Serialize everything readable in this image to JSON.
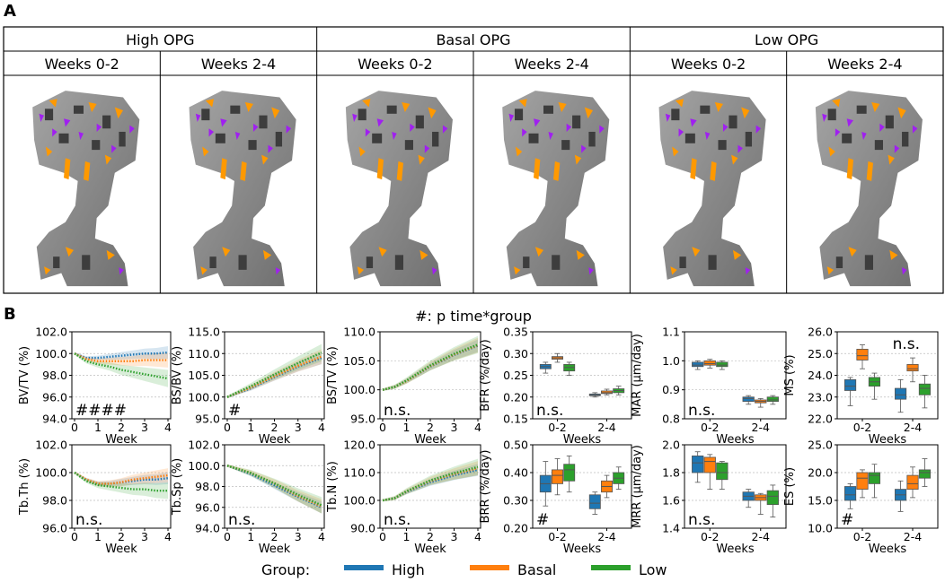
{
  "panel_a": {
    "label": "A",
    "groups": [
      "High OPG",
      "Basal OPG",
      "Low OPG"
    ],
    "periods": [
      "Weeks 0-2",
      "Weeks 2-4"
    ]
  },
  "panel_b": {
    "label": "B",
    "subtitle": "#: p time*group"
  },
  "legend": {
    "title": "Group:",
    "entries": [
      {
        "name": "High",
        "color": "#1f77b4"
      },
      {
        "name": "Basal",
        "color": "#ff7f0e"
      },
      {
        "name": "Low",
        "color": "#2ca02c"
      }
    ]
  },
  "colors": {
    "high": "#1f77b4",
    "basal": "#ff7f0e",
    "low": "#2ca02c",
    "bone": "#8c8c8c",
    "formation": "#ff9900",
    "resorption": "#a020f0"
  },
  "chart_data": [
    {
      "type": "line",
      "id": "bvtv",
      "ylabel": "BV/TV (%)",
      "xlabel": "Week",
      "ylim": [
        94,
        102
      ],
      "yticks": [
        "94.0",
        "96.0",
        "98.0",
        "100.0",
        "102.0"
      ],
      "xticks": [
        "0",
        "1",
        "2",
        "3",
        "4"
      ],
      "annotation": "####",
      "series": [
        {
          "name": "High",
          "x": [
            0,
            0.5,
            1,
            1.5,
            2,
            2.5,
            3,
            3.5,
            4
          ],
          "y": [
            100,
            99.6,
            99.6,
            99.7,
            99.8,
            99.9,
            100,
            100,
            100.1
          ]
        },
        {
          "name": "Basal",
          "x": [
            0,
            0.5,
            1,
            1.5,
            2,
            2.5,
            3,
            3.5,
            4
          ],
          "y": [
            100,
            99.5,
            99.3,
            99.3,
            99.3,
            99.3,
            99.4,
            99.4,
            99.4
          ]
        },
        {
          "name": "Low",
          "x": [
            0,
            0.5,
            1,
            1.5,
            2,
            2.5,
            3,
            3.5,
            4
          ],
          "y": [
            100,
            99.3,
            99.0,
            98.8,
            98.5,
            98.3,
            98.1,
            97.9,
            97.7
          ]
        }
      ]
    },
    {
      "type": "line",
      "id": "bsbv",
      "ylabel": "BS/BV (%)",
      "xlabel": "Week",
      "ylim": [
        95,
        115
      ],
      "yticks": [
        "95.0",
        "100.0",
        "105.0",
        "110.0",
        "115.0"
      ],
      "xticks": [
        "0",
        "1",
        "2",
        "3",
        "4"
      ],
      "annotation": "#",
      "series": [
        {
          "name": "High",
          "x": [
            0,
            1,
            2,
            3,
            4
          ],
          "y": [
            100,
            102,
            104.6,
            107,
            109
          ]
        },
        {
          "name": "Basal",
          "x": [
            0,
            1,
            2,
            3,
            4
          ],
          "y": [
            100,
            102.2,
            104.8,
            107.2,
            109.3
          ]
        },
        {
          "name": "Low",
          "x": [
            0,
            1,
            2,
            3,
            4
          ],
          "y": [
            100,
            102.5,
            105.2,
            107.8,
            110.2
          ]
        }
      ]
    },
    {
      "type": "line",
      "id": "bstv",
      "ylabel": "BS/TV (%)",
      "xlabel": "Week",
      "ylim": [
        95,
        110
      ],
      "yticks": [
        "95.0",
        "100.0",
        "105.0",
        "110.0"
      ],
      "xticks": [
        "0",
        "1",
        "2",
        "3",
        "4"
      ],
      "annotation": "n.s.",
      "series": [
        {
          "name": "High",
          "x": [
            0,
            0.5,
            1,
            2,
            3,
            4
          ],
          "y": [
            100,
            100.5,
            101.5,
            104,
            106,
            107.6
          ]
        },
        {
          "name": "Basal",
          "x": [
            0,
            0.5,
            1,
            2,
            3,
            4
          ],
          "y": [
            100,
            100.5,
            101.5,
            104.1,
            106.1,
            107.7
          ]
        },
        {
          "name": "Low",
          "x": [
            0,
            0.5,
            1,
            2,
            3,
            4
          ],
          "y": [
            100,
            100.5,
            101.6,
            104.2,
            106.2,
            107.8
          ]
        }
      ]
    },
    {
      "type": "box",
      "id": "bfr",
      "ylabel": "BFR (%/day)",
      "xlabel": "Weeks",
      "ylim": [
        0.15,
        0.35
      ],
      "yticks": [
        "0.15",
        "0.20",
        "0.25",
        "0.30",
        "0.35"
      ],
      "categories": [
        "0-2",
        "2-4"
      ],
      "annotation": "n.s.",
      "series": [
        {
          "name": "High",
          "boxes": [
            [
              0.255,
              0.265,
              0.27,
              0.275,
              0.28
            ],
            [
              0.2,
              0.203,
              0.205,
              0.207,
              0.21
            ]
          ]
        },
        {
          "name": "Basal",
          "boxes": [
            [
              0.28,
              0.287,
              0.29,
              0.293,
              0.3
            ],
            [
              0.205,
              0.208,
              0.21,
              0.214,
              0.218
            ]
          ]
        },
        {
          "name": "Low",
          "boxes": [
            [
              0.25,
              0.26,
              0.268,
              0.275,
              0.28
            ],
            [
              0.205,
              0.21,
              0.215,
              0.219,
              0.225
            ]
          ]
        }
      ]
    },
    {
      "type": "box",
      "id": "mar",
      "ylabel": "MAR (μm/day)",
      "xlabel": "Weeks",
      "ylim": [
        0.8,
        1.1
      ],
      "yticks": [
        "0.8",
        "0.9",
        "1.0",
        "1.1"
      ],
      "categories": [
        "0-2",
        "2-4"
      ],
      "annotation": "n.s.",
      "series": [
        {
          "name": "High",
          "boxes": [
            [
              0.97,
              0.98,
              0.985,
              0.995,
              1.0
            ],
            [
              0.85,
              0.86,
              0.87,
              0.875,
              0.88
            ]
          ]
        },
        {
          "name": "Basal",
          "boxes": [
            [
              0.975,
              0.985,
              0.99,
              1.0,
              1.005
            ],
            [
              0.84,
              0.855,
              0.86,
              0.865,
              0.87
            ]
          ]
        },
        {
          "name": "Low",
          "boxes": [
            [
              0.97,
              0.98,
              0.985,
              0.995,
              1.0
            ],
            [
              0.85,
              0.86,
              0.865,
              0.875,
              0.88
            ]
          ]
        }
      ]
    },
    {
      "type": "box",
      "id": "ms",
      "ylabel": "MS (%)",
      "xlabel": "Weeks",
      "ylim": [
        22,
        26
      ],
      "yticks": [
        "22.0",
        "23.0",
        "24.0",
        "25.0",
        "26.0"
      ],
      "categories": [
        "0-2",
        "2-4"
      ],
      "annotation": "n.s.",
      "series": [
        {
          "name": "High",
          "boxes": [
            [
              22.6,
              23.3,
              23.5,
              23.8,
              23.9
            ],
            [
              22.3,
              22.9,
              23.1,
              23.4,
              23.8
            ]
          ]
        },
        {
          "name": "Basal",
          "boxes": [
            [
              24.3,
              24.7,
              24.9,
              25.2,
              25.4
            ],
            [
              23.7,
              24.2,
              24.3,
              24.5,
              24.8
            ]
          ]
        },
        {
          "name": "Low",
          "boxes": [
            [
              22.9,
              23.5,
              23.7,
              23.9,
              24.1
            ],
            [
              22.5,
              23.1,
              23.4,
              23.6,
              24.0
            ]
          ]
        }
      ]
    },
    {
      "type": "line",
      "id": "tbth",
      "ylabel": "Tb.Th (%)",
      "xlabel": "Week",
      "ylim": [
        96,
        102
      ],
      "yticks": [
        "96.0",
        "98.0",
        "100.0",
        "102.0"
      ],
      "xticks": [
        "0",
        "1",
        "2",
        "3",
        "4"
      ],
      "annotation": "n.s.",
      "series": [
        {
          "name": "High",
          "x": [
            0,
            0.5,
            1,
            1.5,
            2,
            2.5,
            3,
            3.5,
            4
          ],
          "y": [
            100,
            99.5,
            99.2,
            99.2,
            99.3,
            99.4,
            99.5,
            99.5,
            99.6
          ]
        },
        {
          "name": "Basal",
          "x": [
            0,
            0.5,
            1,
            1.5,
            2,
            2.5,
            3,
            3.5,
            4
          ],
          "y": [
            100,
            99.5,
            99.2,
            99.2,
            99.3,
            99.5,
            99.6,
            99.7,
            99.8
          ]
        },
        {
          "name": "Low",
          "x": [
            0,
            0.5,
            1,
            1.5,
            2,
            2.5,
            3,
            3.5,
            4
          ],
          "y": [
            100,
            99.4,
            99.1,
            99.0,
            98.9,
            98.8,
            98.8,
            98.7,
            98.7
          ]
        }
      ]
    },
    {
      "type": "line",
      "id": "tbsp",
      "ylabel": "Tb.Sp (%)",
      "xlabel": "Week",
      "ylim": [
        94,
        102
      ],
      "yticks": [
        "94.0",
        "96.0",
        "98.0",
        "100.0",
        "102.0"
      ],
      "xticks": [
        "0",
        "1",
        "2",
        "3",
        "4"
      ],
      "annotation": "n.s.",
      "series": [
        {
          "name": "High",
          "x": [
            0,
            1,
            2,
            3,
            4
          ],
          "y": [
            100,
            99.2,
            98.1,
            97.0,
            96.0
          ]
        },
        {
          "name": "Basal",
          "x": [
            0,
            1,
            2,
            3,
            4
          ],
          "y": [
            100,
            99.3,
            98.3,
            97.1,
            96.1
          ]
        },
        {
          "name": "Low",
          "x": [
            0,
            1,
            2,
            3,
            4
          ],
          "y": [
            100,
            99.3,
            98.3,
            97.2,
            96.2
          ]
        }
      ]
    },
    {
      "type": "line",
      "id": "tbn",
      "ylabel": "Tb.N (%)",
      "xlabel": "Week",
      "ylim": [
        90,
        120
      ],
      "yticks": [
        "90.0",
        "100.0",
        "110.0",
        "120.0"
      ],
      "xticks": [
        "0",
        "1",
        "2",
        "3",
        "4"
      ],
      "annotation": "n.s.",
      "series": [
        {
          "name": "High",
          "x": [
            0,
            0.5,
            1,
            2,
            3,
            4
          ],
          "y": [
            100,
            100.8,
            103,
            106.5,
            109,
            111
          ]
        },
        {
          "name": "Basal",
          "x": [
            0,
            0.5,
            1,
            2,
            3,
            4
          ],
          "y": [
            100,
            100.8,
            103.2,
            107,
            109.5,
            111.6
          ]
        },
        {
          "name": "Low",
          "x": [
            0,
            0.5,
            1,
            2,
            3,
            4
          ],
          "y": [
            100,
            100.8,
            103.3,
            107.2,
            109.8,
            112
          ]
        }
      ]
    },
    {
      "type": "box",
      "id": "brr",
      "ylabel": "BRR (%/day)",
      "xlabel": "Weeks",
      "ylim": [
        0.2,
        0.5
      ],
      "yticks": [
        "0.20",
        "0.30",
        "0.40",
        "0.50"
      ],
      "categories": [
        "0-2",
        "2-4"
      ],
      "annotation": "#",
      "series": [
        {
          "name": "High",
          "boxes": [
            [
              0.28,
              0.33,
              0.36,
              0.39,
              0.44
            ],
            [
              0.25,
              0.27,
              0.29,
              0.32,
              0.33
            ]
          ]
        },
        {
          "name": "Basal",
          "boxes": [
            [
              0.32,
              0.36,
              0.39,
              0.41,
              0.45
            ],
            [
              0.31,
              0.33,
              0.35,
              0.37,
              0.39
            ]
          ]
        },
        {
          "name": "Low",
          "boxes": [
            [
              0.33,
              0.37,
              0.41,
              0.43,
              0.46
            ],
            [
              0.34,
              0.36,
              0.38,
              0.4,
              0.42
            ]
          ]
        }
      ]
    },
    {
      "type": "box",
      "id": "mrr",
      "ylabel": "MRR (μm/day)",
      "xlabel": "Weeks",
      "ylim": [
        1.4,
        2.0
      ],
      "yticks": [
        "1.4",
        "1.6",
        "1.8",
        "2.0"
      ],
      "categories": [
        "0-2",
        "2-4"
      ],
      "annotation": "n.s.",
      "series": [
        {
          "name": "High",
          "boxes": [
            [
              1.73,
              1.8,
              1.87,
              1.92,
              1.95
            ],
            [
              1.55,
              1.6,
              1.63,
              1.66,
              1.68
            ]
          ]
        },
        {
          "name": "Basal",
          "boxes": [
            [
              1.68,
              1.8,
              1.88,
              1.91,
              1.93
            ],
            [
              1.5,
              1.6,
              1.62,
              1.64,
              1.65
            ]
          ]
        },
        {
          "name": "Low",
          "boxes": [
            [
              1.68,
              1.75,
              1.8,
              1.87,
              1.88
            ],
            [
              1.48,
              1.57,
              1.63,
              1.67,
              1.71
            ]
          ]
        }
      ]
    },
    {
      "type": "box",
      "id": "es",
      "ylabel": "ES (%)",
      "xlabel": "Weeks",
      "ylim": [
        10,
        25
      ],
      "yticks": [
        "10.0",
        "15.0",
        "20.0",
        "25.0"
      ],
      "categories": [
        "0-2",
        "2-4"
      ],
      "annotation": "#",
      "series": [
        {
          "name": "High",
          "boxes": [
            [
              13.5,
              15.0,
              16.0,
              17.5,
              18.0
            ],
            [
              13.0,
              15.0,
              16.0,
              17.0,
              18.5
            ]
          ]
        },
        {
          "name": "Basal",
          "boxes": [
            [
              15.5,
              17.0,
              19.0,
              20.0,
              20.5
            ],
            [
              15.5,
              17.0,
              18.0,
              19.5,
              21.0
            ]
          ]
        },
        {
          "name": "Low",
          "boxes": [
            [
              15.5,
              18.0,
              19.5,
              20.0,
              21.5
            ],
            [
              17.5,
              19.0,
              20.0,
              20.5,
              22.5
            ]
          ]
        }
      ]
    }
  ]
}
